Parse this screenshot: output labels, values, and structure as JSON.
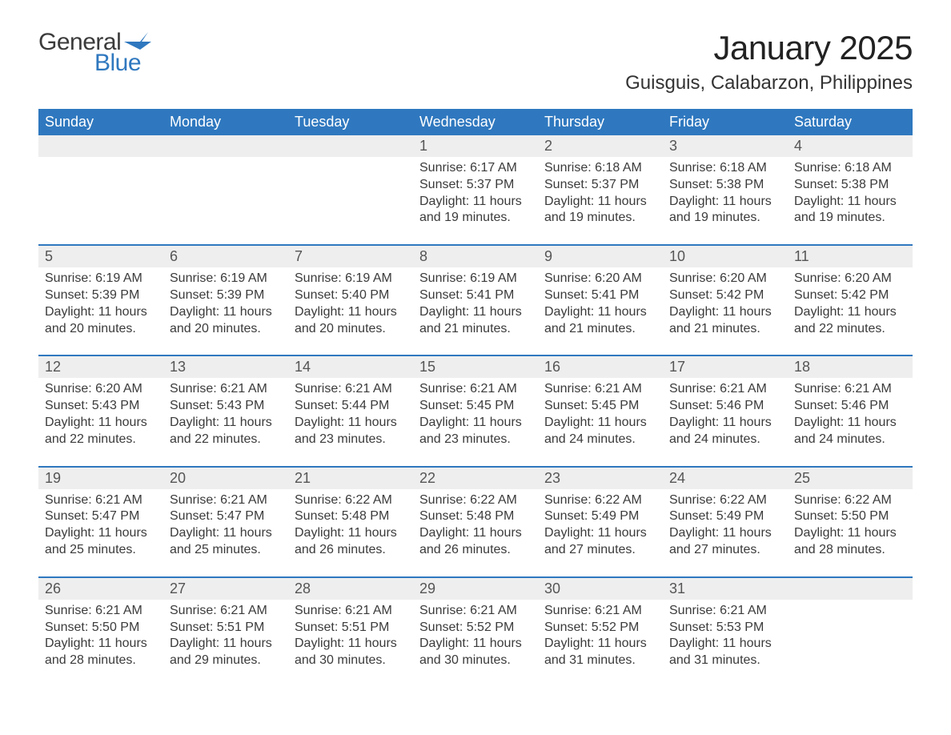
{
  "brand": {
    "word1": "General",
    "word2": "Blue",
    "logo_color": "#2f78bf"
  },
  "title": "January 2025",
  "location": "Guisguis, Calabarzon, Philippines",
  "colors": {
    "header_bg": "#2f78bf",
    "header_text": "#ffffff",
    "daynum_bg": "#eeeeee",
    "divider": "#2f78bf",
    "body_text": "#3b3b3b",
    "page_bg": "#ffffff"
  },
  "typography": {
    "title_fontsize": 42,
    "location_fontsize": 24,
    "header_fontsize": 18,
    "daynum_fontsize": 18,
    "cell_fontsize": 16
  },
  "layout": {
    "columns": 7,
    "weeks": 5
  },
  "day_names": [
    "Sunday",
    "Monday",
    "Tuesday",
    "Wednesday",
    "Thursday",
    "Friday",
    "Saturday"
  ],
  "weeks": [
    {
      "days": [
        {
          "num": "",
          "sunrise": "",
          "sunset": "",
          "daylight": ""
        },
        {
          "num": "",
          "sunrise": "",
          "sunset": "",
          "daylight": ""
        },
        {
          "num": "",
          "sunrise": "",
          "sunset": "",
          "daylight": ""
        },
        {
          "num": "1",
          "sunrise": "Sunrise: 6:17 AM",
          "sunset": "Sunset: 5:37 PM",
          "daylight": "Daylight: 11 hours and 19 minutes."
        },
        {
          "num": "2",
          "sunrise": "Sunrise: 6:18 AM",
          "sunset": "Sunset: 5:37 PM",
          "daylight": "Daylight: 11 hours and 19 minutes."
        },
        {
          "num": "3",
          "sunrise": "Sunrise: 6:18 AM",
          "sunset": "Sunset: 5:38 PM",
          "daylight": "Daylight: 11 hours and 19 minutes."
        },
        {
          "num": "4",
          "sunrise": "Sunrise: 6:18 AM",
          "sunset": "Sunset: 5:38 PM",
          "daylight": "Daylight: 11 hours and 19 minutes."
        }
      ]
    },
    {
      "days": [
        {
          "num": "5",
          "sunrise": "Sunrise: 6:19 AM",
          "sunset": "Sunset: 5:39 PM",
          "daylight": "Daylight: 11 hours and 20 minutes."
        },
        {
          "num": "6",
          "sunrise": "Sunrise: 6:19 AM",
          "sunset": "Sunset: 5:39 PM",
          "daylight": "Daylight: 11 hours and 20 minutes."
        },
        {
          "num": "7",
          "sunrise": "Sunrise: 6:19 AM",
          "sunset": "Sunset: 5:40 PM",
          "daylight": "Daylight: 11 hours and 20 minutes."
        },
        {
          "num": "8",
          "sunrise": "Sunrise: 6:19 AM",
          "sunset": "Sunset: 5:41 PM",
          "daylight": "Daylight: 11 hours and 21 minutes."
        },
        {
          "num": "9",
          "sunrise": "Sunrise: 6:20 AM",
          "sunset": "Sunset: 5:41 PM",
          "daylight": "Daylight: 11 hours and 21 minutes."
        },
        {
          "num": "10",
          "sunrise": "Sunrise: 6:20 AM",
          "sunset": "Sunset: 5:42 PM",
          "daylight": "Daylight: 11 hours and 21 minutes."
        },
        {
          "num": "11",
          "sunrise": "Sunrise: 6:20 AM",
          "sunset": "Sunset: 5:42 PM",
          "daylight": "Daylight: 11 hours and 22 minutes."
        }
      ]
    },
    {
      "days": [
        {
          "num": "12",
          "sunrise": "Sunrise: 6:20 AM",
          "sunset": "Sunset: 5:43 PM",
          "daylight": "Daylight: 11 hours and 22 minutes."
        },
        {
          "num": "13",
          "sunrise": "Sunrise: 6:21 AM",
          "sunset": "Sunset: 5:43 PM",
          "daylight": "Daylight: 11 hours and 22 minutes."
        },
        {
          "num": "14",
          "sunrise": "Sunrise: 6:21 AM",
          "sunset": "Sunset: 5:44 PM",
          "daylight": "Daylight: 11 hours and 23 minutes."
        },
        {
          "num": "15",
          "sunrise": "Sunrise: 6:21 AM",
          "sunset": "Sunset: 5:45 PM",
          "daylight": "Daylight: 11 hours and 23 minutes."
        },
        {
          "num": "16",
          "sunrise": "Sunrise: 6:21 AM",
          "sunset": "Sunset: 5:45 PM",
          "daylight": "Daylight: 11 hours and 24 minutes."
        },
        {
          "num": "17",
          "sunrise": "Sunrise: 6:21 AM",
          "sunset": "Sunset: 5:46 PM",
          "daylight": "Daylight: 11 hours and 24 minutes."
        },
        {
          "num": "18",
          "sunrise": "Sunrise: 6:21 AM",
          "sunset": "Sunset: 5:46 PM",
          "daylight": "Daylight: 11 hours and 24 minutes."
        }
      ]
    },
    {
      "days": [
        {
          "num": "19",
          "sunrise": "Sunrise: 6:21 AM",
          "sunset": "Sunset: 5:47 PM",
          "daylight": "Daylight: 11 hours and 25 minutes."
        },
        {
          "num": "20",
          "sunrise": "Sunrise: 6:21 AM",
          "sunset": "Sunset: 5:47 PM",
          "daylight": "Daylight: 11 hours and 25 minutes."
        },
        {
          "num": "21",
          "sunrise": "Sunrise: 6:22 AM",
          "sunset": "Sunset: 5:48 PM",
          "daylight": "Daylight: 11 hours and 26 minutes."
        },
        {
          "num": "22",
          "sunrise": "Sunrise: 6:22 AM",
          "sunset": "Sunset: 5:48 PM",
          "daylight": "Daylight: 11 hours and 26 minutes."
        },
        {
          "num": "23",
          "sunrise": "Sunrise: 6:22 AM",
          "sunset": "Sunset: 5:49 PM",
          "daylight": "Daylight: 11 hours and 27 minutes."
        },
        {
          "num": "24",
          "sunrise": "Sunrise: 6:22 AM",
          "sunset": "Sunset: 5:49 PM",
          "daylight": "Daylight: 11 hours and 27 minutes."
        },
        {
          "num": "25",
          "sunrise": "Sunrise: 6:22 AM",
          "sunset": "Sunset: 5:50 PM",
          "daylight": "Daylight: 11 hours and 28 minutes."
        }
      ]
    },
    {
      "days": [
        {
          "num": "26",
          "sunrise": "Sunrise: 6:21 AM",
          "sunset": "Sunset: 5:50 PM",
          "daylight": "Daylight: 11 hours and 28 minutes."
        },
        {
          "num": "27",
          "sunrise": "Sunrise: 6:21 AM",
          "sunset": "Sunset: 5:51 PM",
          "daylight": "Daylight: 11 hours and 29 minutes."
        },
        {
          "num": "28",
          "sunrise": "Sunrise: 6:21 AM",
          "sunset": "Sunset: 5:51 PM",
          "daylight": "Daylight: 11 hours and 30 minutes."
        },
        {
          "num": "29",
          "sunrise": "Sunrise: 6:21 AM",
          "sunset": "Sunset: 5:52 PM",
          "daylight": "Daylight: 11 hours and 30 minutes."
        },
        {
          "num": "30",
          "sunrise": "Sunrise: 6:21 AM",
          "sunset": "Sunset: 5:52 PM",
          "daylight": "Daylight: 11 hours and 31 minutes."
        },
        {
          "num": "31",
          "sunrise": "Sunrise: 6:21 AM",
          "sunset": "Sunset: 5:53 PM",
          "daylight": "Daylight: 11 hours and 31 minutes."
        },
        {
          "num": "",
          "sunrise": "",
          "sunset": "",
          "daylight": ""
        }
      ]
    }
  ]
}
